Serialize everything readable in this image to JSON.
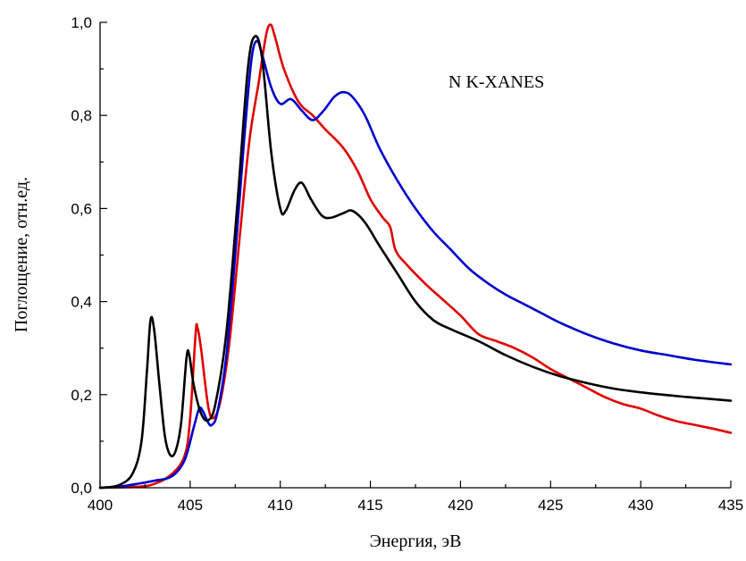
{
  "chart_data": {
    "type": "line",
    "title": "",
    "annotation": "N K-XANES",
    "xlabel": "Энергия, эВ",
    "ylabel": "Поглощение, отн.ед.",
    "xlim": [
      400,
      435
    ],
    "ylim": [
      0,
      1.0
    ],
    "x_ticks": [
      400,
      405,
      410,
      415,
      420,
      425,
      430,
      435
    ],
    "x_tick_labels": [
      "400",
      "405",
      "410",
      "415",
      "420",
      "425",
      "430",
      "435"
    ],
    "y_ticks": [
      0,
      0.2,
      0.4,
      0.6,
      0.8,
      1.0
    ],
    "y_tick_labels": [
      "0,0",
      "0,2",
      "0,4",
      "0,6",
      "0,8",
      "1,0"
    ],
    "grid": false,
    "series": [
      {
        "color": "#e00000",
        "points": [
          [
            400,
            0
          ],
          [
            402,
            0.002
          ],
          [
            403,
            0.008
          ],
          [
            404,
            0.03
          ],
          [
            404.7,
            0.07
          ],
          [
            405,
            0.15
          ],
          [
            405.3,
            0.33
          ],
          [
            405.4,
            0.345
          ],
          [
            405.6,
            0.3
          ],
          [
            406,
            0.175
          ],
          [
            406.3,
            0.15
          ],
          [
            406.7,
            0.19
          ],
          [
            407.2,
            0.32
          ],
          [
            407.8,
            0.56
          ],
          [
            408.3,
            0.75
          ],
          [
            408.8,
            0.87
          ],
          [
            409.2,
            0.97
          ],
          [
            409.45,
            0.995
          ],
          [
            409.7,
            0.97
          ],
          [
            410.2,
            0.9
          ],
          [
            411,
            0.83
          ],
          [
            411.8,
            0.8
          ],
          [
            412.5,
            0.77
          ],
          [
            413.5,
            0.73
          ],
          [
            414.3,
            0.68
          ],
          [
            415,
            0.62
          ],
          [
            415.7,
            0.58
          ],
          [
            416.1,
            0.56
          ],
          [
            416.4,
            0.51
          ],
          [
            417,
            0.48
          ],
          [
            418,
            0.44
          ],
          [
            419,
            0.405
          ],
          [
            420,
            0.37
          ],
          [
            421,
            0.33
          ],
          [
            422,
            0.315
          ],
          [
            423,
            0.3
          ],
          [
            424,
            0.28
          ],
          [
            425,
            0.255
          ],
          [
            426,
            0.235
          ],
          [
            427,
            0.215
          ],
          [
            428,
            0.195
          ],
          [
            429,
            0.18
          ],
          [
            430,
            0.17
          ],
          [
            431,
            0.155
          ],
          [
            432,
            0.143
          ],
          [
            433,
            0.135
          ],
          [
            434,
            0.127
          ],
          [
            435,
            0.118
          ]
        ]
      },
      {
        "color": "#0000cc",
        "points": [
          [
            400,
            0
          ],
          [
            401,
            0.002
          ],
          [
            402,
            0.008
          ],
          [
            403,
            0.015
          ],
          [
            404,
            0.025
          ],
          [
            404.7,
            0.06
          ],
          [
            405.2,
            0.13
          ],
          [
            405.5,
            0.17
          ],
          [
            405.7,
            0.165
          ],
          [
            406,
            0.14
          ],
          [
            406.2,
            0.135
          ],
          [
            406.5,
            0.16
          ],
          [
            407,
            0.28
          ],
          [
            407.5,
            0.5
          ],
          [
            408,
            0.75
          ],
          [
            408.4,
            0.92
          ],
          [
            408.7,
            0.96
          ],
          [
            409,
            0.93
          ],
          [
            409.5,
            0.86
          ],
          [
            410,
            0.825
          ],
          [
            410.6,
            0.835
          ],
          [
            411.2,
            0.81
          ],
          [
            411.8,
            0.79
          ],
          [
            412.4,
            0.81
          ],
          [
            413,
            0.84
          ],
          [
            413.5,
            0.85
          ],
          [
            414,
            0.84
          ],
          [
            414.7,
            0.8
          ],
          [
            415.5,
            0.73
          ],
          [
            416.5,
            0.66
          ],
          [
            417.5,
            0.6
          ],
          [
            418.5,
            0.55
          ],
          [
            419.5,
            0.51
          ],
          [
            420.5,
            0.47
          ],
          [
            421.5,
            0.44
          ],
          [
            422.5,
            0.415
          ],
          [
            423.5,
            0.395
          ],
          [
            424.5,
            0.375
          ],
          [
            425.5,
            0.355
          ],
          [
            427,
            0.33
          ],
          [
            428.5,
            0.31
          ],
          [
            430,
            0.295
          ],
          [
            431.5,
            0.285
          ],
          [
            433,
            0.275
          ],
          [
            435,
            0.265
          ]
        ]
      },
      {
        "color": "#000000",
        "points": [
          [
            400,
            0
          ],
          [
            401,
            0.005
          ],
          [
            401.8,
            0.03
          ],
          [
            402.3,
            0.1
          ],
          [
            402.6,
            0.25
          ],
          [
            402.8,
            0.36
          ],
          [
            403,
            0.34
          ],
          [
            403.3,
            0.22
          ],
          [
            403.6,
            0.11
          ],
          [
            403.9,
            0.07
          ],
          [
            404.2,
            0.08
          ],
          [
            404.5,
            0.14
          ],
          [
            404.8,
            0.28
          ],
          [
            404.95,
            0.285
          ],
          [
            405.2,
            0.22
          ],
          [
            405.6,
            0.16
          ],
          [
            406,
            0.145
          ],
          [
            406.4,
            0.18
          ],
          [
            407,
            0.33
          ],
          [
            407.6,
            0.6
          ],
          [
            408.2,
            0.9
          ],
          [
            408.6,
            0.97
          ],
          [
            409,
            0.92
          ],
          [
            409.5,
            0.72
          ],
          [
            410,
            0.6
          ],
          [
            410.3,
            0.595
          ],
          [
            410.8,
            0.64
          ],
          [
            411.2,
            0.655
          ],
          [
            411.7,
            0.62
          ],
          [
            412.3,
            0.585
          ],
          [
            412.8,
            0.58
          ],
          [
            413.5,
            0.59
          ],
          [
            414,
            0.595
          ],
          [
            414.7,
            0.57
          ],
          [
            415.5,
            0.52
          ],
          [
            416.5,
            0.46
          ],
          [
            417.5,
            0.4
          ],
          [
            418.5,
            0.36
          ],
          [
            419.5,
            0.34
          ],
          [
            421,
            0.315
          ],
          [
            422.5,
            0.285
          ],
          [
            424,
            0.26
          ],
          [
            425.5,
            0.24
          ],
          [
            427,
            0.225
          ],
          [
            428.5,
            0.213
          ],
          [
            430,
            0.205
          ],
          [
            432,
            0.197
          ],
          [
            433.5,
            0.192
          ],
          [
            435,
            0.187
          ]
        ]
      }
    ]
  }
}
